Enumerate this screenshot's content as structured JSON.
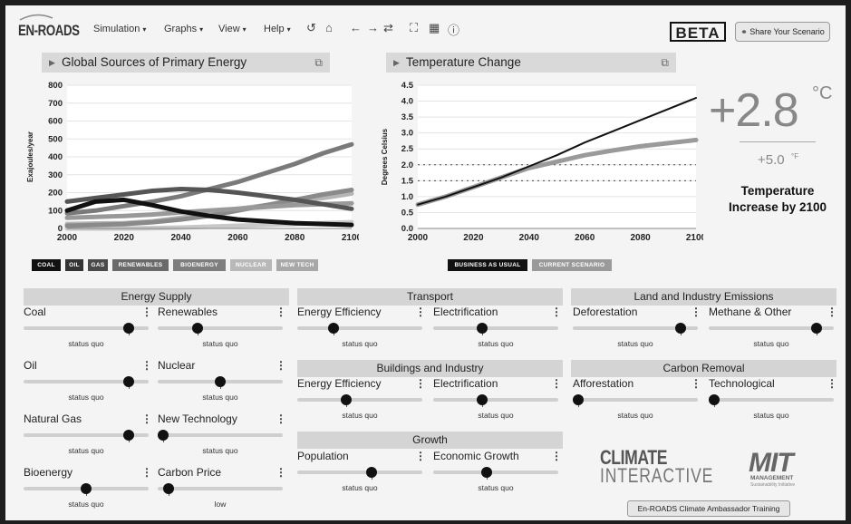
{
  "header": {
    "logo": "EN-ROADS",
    "menus": [
      {
        "label": "Simulation"
      },
      {
        "label": "Graphs"
      },
      {
        "label": "View"
      },
      {
        "label": "Help"
      }
    ],
    "toolbar_icons": [
      "undo-icon",
      "home-icon",
      "back-arrow-icon",
      "forward-arrow-icon",
      "refresh-icon",
      "fullscreen-icon",
      "grid-icon",
      "info-icon"
    ],
    "beta": "BETA",
    "share": "Share Your Scenario"
  },
  "energy_graph": {
    "title": "Global Sources of Primary Energy",
    "chart_data": {
      "type": "line",
      "ylabel": "Exajoules/year",
      "xlim": [
        2000,
        2100
      ],
      "ylim": [
        0,
        800
      ],
      "yticks": [
        0,
        100,
        200,
        300,
        400,
        500,
        600,
        700,
        800
      ],
      "xticks": [
        2000,
        2020,
        2040,
        2060,
        2080,
        2100
      ],
      "x": [
        2000,
        2010,
        2020,
        2030,
        2040,
        2050,
        2060,
        2070,
        2080,
        2090,
        2100
      ],
      "series": [
        {
          "name": "COAL",
          "color": "#111111",
          "values": [
            100,
            150,
            160,
            130,
            95,
            70,
            50,
            40,
            30,
            25,
            20
          ]
        },
        {
          "name": "OIL",
          "color": "#555555",
          "values": [
            150,
            170,
            190,
            210,
            220,
            215,
            200,
            180,
            160,
            135,
            110
          ]
        },
        {
          "name": "GAS",
          "color": "#7a7a7a",
          "values": [
            85,
            100,
            125,
            150,
            180,
            220,
            260,
            310,
            360,
            420,
            470
          ]
        },
        {
          "name": "RENEWABLES",
          "color": "#8a8a8a",
          "values": [
            15,
            20,
            25,
            35,
            50,
            70,
            100,
            130,
            160,
            190,
            215
          ]
        },
        {
          "name": "BIOENERGY",
          "color": "#999999",
          "values": [
            60,
            65,
            70,
            78,
            90,
            100,
            110,
            120,
            130,
            135,
            140
          ]
        },
        {
          "name": "NUCLEAR",
          "color": "#b5b5b5",
          "values": [
            25,
            28,
            30,
            40,
            60,
            85,
            110,
            130,
            150,
            170,
            195
          ]
        },
        {
          "name": "NEW TECH",
          "color": "#c8c8c8",
          "values": [
            0,
            0,
            0,
            2,
            5,
            10,
            15,
            20,
            25,
            30,
            35
          ]
        }
      ]
    },
    "legend": [
      {
        "label": "COAL",
        "color": "#111111"
      },
      {
        "label": "OIL",
        "color": "#333333"
      },
      {
        "label": "GAS",
        "color": "#4a4a4a"
      },
      {
        "label": "RENEWABLES",
        "color": "#6a6a6a"
      },
      {
        "label": "BIOENERGY",
        "color": "#7e7e7e"
      },
      {
        "label": "NUCLEAR",
        "color": "#b8b8b8"
      },
      {
        "label": "NEW TECH",
        "color": "#a8a8a8"
      }
    ]
  },
  "temp_graph": {
    "title": "Temperature Change",
    "chart_data": {
      "type": "line",
      "ylabel": "Degrees Celsius",
      "xlim": [
        2000,
        2100
      ],
      "ylim": [
        0,
        4.5
      ],
      "yticks": [
        0.0,
        0.5,
        1.0,
        1.5,
        2.0,
        2.5,
        3.0,
        3.5,
        4.0,
        4.5
      ],
      "xticks": [
        2000,
        2020,
        2040,
        2060,
        2080,
        2100
      ],
      "reference_lines": [
        1.5,
        2.0
      ],
      "x": [
        2000,
        2010,
        2020,
        2030,
        2040,
        2050,
        2060,
        2070,
        2080,
        2090,
        2100
      ],
      "series": [
        {
          "name": "BUSINESS AS USUAL",
          "color": "#111111",
          "values": [
            0.75,
            1.0,
            1.3,
            1.6,
            1.95,
            2.3,
            2.7,
            3.05,
            3.4,
            3.75,
            4.1
          ]
        },
        {
          "name": "CURRENT SCENARIO",
          "color": "#9a9a9a",
          "values": [
            0.75,
            1.0,
            1.3,
            1.6,
            1.9,
            2.1,
            2.3,
            2.45,
            2.58,
            2.68,
            2.78
          ]
        }
      ]
    },
    "legend": [
      {
        "label": "BUSINESS AS USUAL",
        "color": "#111111"
      },
      {
        "label": "CURRENT SCENARIO",
        "color": "#9a9a9a"
      }
    ]
  },
  "temperature": {
    "value": "+2.8",
    "unit": "°C",
    "value_f": "+5.0",
    "unit_f": "°F",
    "caption": "Temperature Increase by 2100"
  },
  "sections": {
    "energy_supply": "Energy Supply",
    "transport": "Transport",
    "buildings": "Buildings and Industry",
    "growth": "Growth",
    "land": "Land and Industry Emissions",
    "carbon_removal": "Carbon Removal"
  },
  "controls": {
    "coal": {
      "label": "Coal",
      "status": "status quo",
      "level": 0.87
    },
    "renewables": {
      "label": "Renewables",
      "status": "status quo",
      "level": 0.3
    },
    "oil": {
      "label": "Oil",
      "status": "status quo",
      "level": 0.87
    },
    "nuclear": {
      "label": "Nuclear",
      "status": "status quo",
      "level": 0.5
    },
    "natural_gas": {
      "label": "Natural Gas",
      "status": "status quo",
      "level": 0.87
    },
    "new_tech": {
      "label": "New Technology",
      "status": "status quo",
      "level": 0.0
    },
    "bioenergy": {
      "label": "Bioenergy",
      "status": "status quo",
      "level": 0.5
    },
    "carbon_price": {
      "label": "Carbon Price",
      "status": "low",
      "level": 0.05
    },
    "t_efficiency": {
      "label": "Energy Efficiency",
      "status": "status quo",
      "level": 0.27
    },
    "t_electrification": {
      "label": "Electrification",
      "status": "status quo",
      "level": 0.38
    },
    "b_efficiency": {
      "label": "Energy Efficiency",
      "status": "status quo",
      "level": 0.38
    },
    "b_electrification": {
      "label": "Electrification",
      "status": "status quo",
      "level": 0.38
    },
    "population": {
      "label": "Population",
      "status": "status quo",
      "level": 0.6
    },
    "economic_growth": {
      "label": "Economic Growth",
      "status": "status quo",
      "level": 0.42
    },
    "deforestation": {
      "label": "Deforestation",
      "status": "status quo",
      "level": 0.9
    },
    "methane": {
      "label": "Methane & Other",
      "status": "status quo",
      "level": 0.9
    },
    "afforestation": {
      "label": "Afforestation",
      "status": "status quo",
      "level": 0.0
    },
    "technological": {
      "label": "Technological",
      "status": "status quo",
      "level": 0.0
    }
  },
  "logos": {
    "ci_top": "CLIMATE",
    "ci_bottom": "INTERACTIVE",
    "mit": "MIT",
    "mit_sub": "MANAGEMENT",
    "mit_sub2": "Sustainability Initiative"
  },
  "training_button": "En-ROADS Climate Ambassador Training"
}
